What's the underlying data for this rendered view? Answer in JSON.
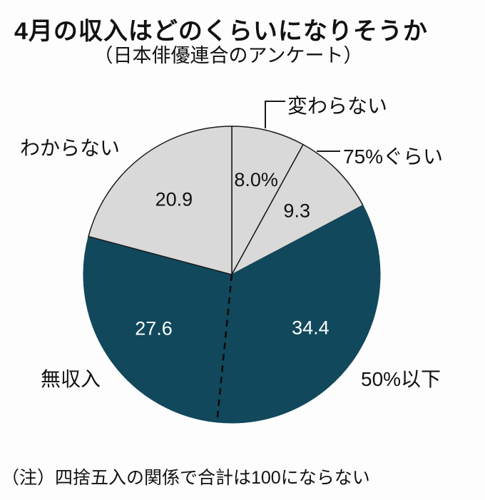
{
  "chart_data": {
    "type": "pie",
    "title": "4月の収入はどのくらいになりそうか",
    "subtitle": "（日本俳優連合のアンケート）",
    "note": "（注）四捨五入の関係で合計は100にならない",
    "unit": "%",
    "direction": "clockwise",
    "start_angle_deg": 0,
    "slices": [
      {
        "label": "変わらない",
        "value": 8.0,
        "display": "8.0%",
        "shade": "light"
      },
      {
        "label": "75%ぐらい",
        "value": 9.3,
        "display": "9.3",
        "shade": "light"
      },
      {
        "label": "50%以下",
        "value": 34.4,
        "display": "34.4",
        "shade": "dark"
      },
      {
        "label": "無収入",
        "value": 27.6,
        "display": "27.6",
        "shade": "dark"
      },
      {
        "label": "わからない",
        "value": 20.9,
        "display": "20.9",
        "shade": "light"
      }
    ],
    "colors": {
      "light": "#d9d9d9",
      "dark": "#11485c",
      "outline": "#1a1a1a",
      "label_on_light": "#111111",
      "label_on_dark": "#ffffff"
    },
    "divider_between": [
      "50%以下",
      "無収入"
    ],
    "legend_position": "none",
    "notes_on_layout": "values drawn inside slices; category names drawn outside with leader lines"
  }
}
